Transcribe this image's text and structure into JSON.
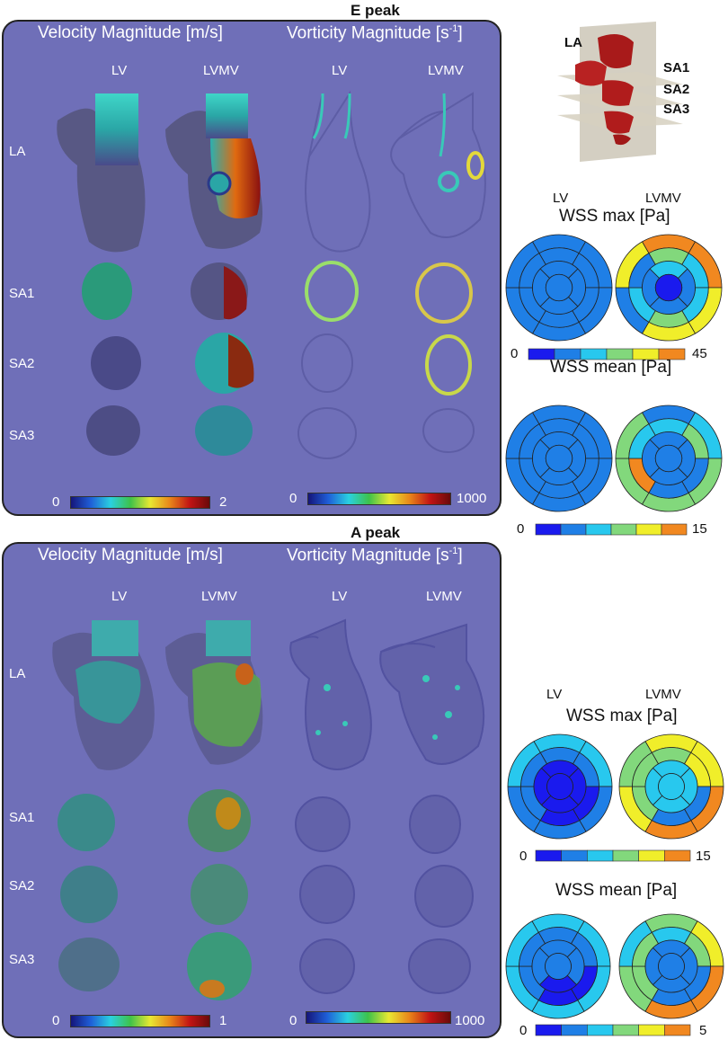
{
  "sections": [
    {
      "title": "E peak",
      "velocity_header": "Velocity Magnitude [m/s]",
      "vorticity_header_main": "Vorticity Magnitude [s",
      "vorticity_header_sup": "-1",
      "vorticity_header_end": "]",
      "columns": [
        "LV",
        "LVMV",
        "LV",
        "LVMV"
      ],
      "rows": [
        "LA",
        "SA1",
        "SA2",
        "SA3"
      ],
      "velocity_scale": {
        "min": "0",
        "max": "2"
      },
      "vorticity_scale": {
        "min": "0",
        "max": "1000"
      },
      "wss_columns": [
        "LV",
        "LVMV"
      ],
      "wss_max_title": "WSS max [Pa]",
      "wss_max_scale": {
        "min": "0",
        "max": "45"
      },
      "wss_mean_title": "WSS mean [Pa]",
      "wss_mean_scale": {
        "min": "0",
        "max": "15"
      }
    },
    {
      "title": "A peak",
      "velocity_header": "Velocity Magnitude [m/s]",
      "vorticity_header_main": "Vorticity Magnitude [s",
      "vorticity_header_sup": "-1",
      "vorticity_header_end": "]",
      "columns": [
        "LV",
        "LVMV",
        "LV",
        "LVMV"
      ],
      "rows": [
        "LA",
        "SA1",
        "SA2",
        "SA3"
      ],
      "velocity_scale": {
        "min": "0",
        "max": "1"
      },
      "vorticity_scale": {
        "min": "0",
        "max": "1000"
      },
      "wss_columns": [
        "LV",
        "LVMV"
      ],
      "wss_max_title": "WSS max [Pa]",
      "wss_max_scale": {
        "min": "0",
        "max": "15"
      },
      "wss_mean_title": "WSS mean [Pa]",
      "wss_mean_scale": {
        "min": "0",
        "max": "5"
      }
    }
  ],
  "schematic": {
    "labels": [
      "LA",
      "SA1",
      "SA2",
      "SA3"
    ]
  },
  "colors": {
    "panel_bg": "#6f6fb8",
    "wss_levels": [
      "#1a1aee",
      "#1f7fe6",
      "#28c8ee",
      "#82d87c",
      "#f0ee2a",
      "#f18820"
    ]
  },
  "bullseyes": {
    "e_max_lv": [
      1,
      1,
      1,
      1,
      1,
      1,
      1,
      1,
      1,
      1,
      1,
      1,
      1,
      1,
      1,
      1,
      1
    ],
    "e_max_lvmv": [
      5,
      5,
      4,
      4,
      1,
      4,
      3,
      2,
      2,
      3,
      2,
      1,
      2,
      1,
      1,
      1,
      0
    ],
    "e_mean_lv": [
      1,
      1,
      1,
      1,
      1,
      1,
      1,
      1,
      1,
      1,
      1,
      1,
      1,
      1,
      1,
      1,
      1
    ],
    "e_mean_lvmv": [
      1,
      2,
      3,
      3,
      3,
      3,
      2,
      3,
      1,
      1,
      5,
      2,
      1,
      1,
      1,
      1,
      1
    ],
    "a_max_lv": [
      2,
      2,
      1,
      1,
      1,
      2,
      1,
      1,
      0,
      0,
      1,
      1,
      0,
      0,
      0,
      0,
      0
    ],
    "a_max_lvmv": [
      4,
      4,
      5,
      5,
      4,
      3,
      3,
      4,
      1,
      1,
      3,
      3,
      2,
      2,
      2,
      2,
      2
    ],
    "a_mean_lv": [
      2,
      2,
      2,
      2,
      2,
      2,
      1,
      1,
      0,
      0,
      1,
      1,
      1,
      1,
      0,
      1,
      1
    ],
    "a_mean_lvmv": [
      3,
      4,
      5,
      5,
      3,
      2,
      2,
      3,
      1,
      1,
      3,
      3,
      1,
      1,
      1,
      1,
      1
    ]
  }
}
